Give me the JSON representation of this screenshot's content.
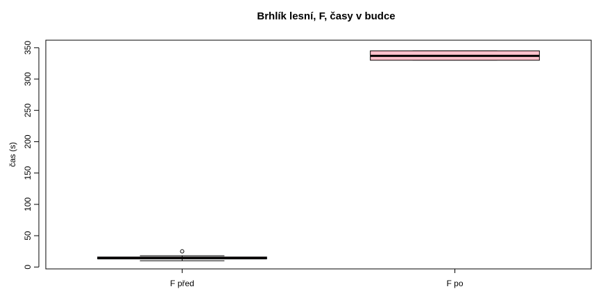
{
  "chart_data": {
    "type": "boxplot",
    "title": "Brhlík lesní, F, časy v budce",
    "xlabel": "",
    "ylabel": "čas (s)",
    "ylim": [
      -3,
      362
    ],
    "yticks": [
      "0",
      "50",
      "100",
      "150",
      "200",
      "250",
      "300",
      "350"
    ],
    "yticks_values": [
      0,
      50,
      100,
      150,
      200,
      250,
      300,
      350
    ],
    "categories": [
      "F před",
      "F po"
    ],
    "boxes": [
      {
        "category": "F před",
        "whisker_low": 10,
        "q1": 13,
        "median": 14,
        "q3": 16,
        "whisker_high": 18,
        "outliers": [
          25
        ],
        "fill": "#8B0000"
      },
      {
        "category": "F po",
        "whisker_low": 330,
        "q1": 330,
        "median": 337,
        "q3": 345,
        "whisker_high": 345,
        "outliers": [],
        "fill": "#FFC0CB"
      }
    ],
    "grid": false,
    "legend": "none"
  }
}
